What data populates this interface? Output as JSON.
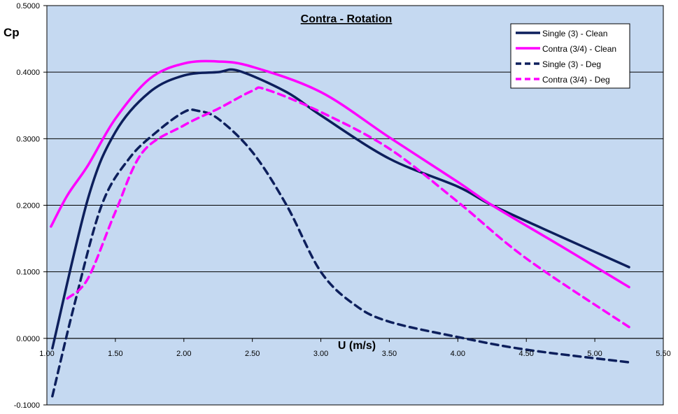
{
  "chart_data": {
    "type": "line",
    "title": "Contra - Rotation",
    "xlabel": "U (m/s)",
    "ylabel": "Cp",
    "xlim": [
      1.0,
      5.5
    ],
    "ylim": [
      -0.1,
      0.5
    ],
    "xticks": [
      "1.00",
      "1.50",
      "2.00",
      "2.50",
      "3.00",
      "3.50",
      "4.00",
      "4.50",
      "5.00",
      "5.50"
    ],
    "yticks": [
      "-0.1000",
      "0.0000",
      "0.1000",
      "0.2000",
      "0.3000",
      "0.4000",
      "0.5000"
    ],
    "grid": "horizontal",
    "legend_position": "top-right",
    "series": [
      {
        "name": "Single (3) - Clean",
        "color": "#0d1f5c",
        "dashed": false,
        "x": [
          1.04,
          1.3,
          1.5,
          1.75,
          2.0,
          2.25,
          2.4,
          2.75,
          3.0,
          3.5,
          4.0,
          4.25,
          4.75,
          5.25
        ],
        "y": [
          -0.015,
          0.21,
          0.31,
          0.37,
          0.395,
          0.4,
          0.402,
          0.37,
          0.335,
          0.27,
          0.228,
          0.2,
          0.153,
          0.107
        ]
      },
      {
        "name": "Contra (3/4) - Clean",
        "color": "#ff00ff",
        "dashed": false,
        "x": [
          1.03,
          1.15,
          1.3,
          1.5,
          1.75,
          2.0,
          2.25,
          2.5,
          3.0,
          3.5,
          4.0,
          4.25,
          4.75,
          5.25
        ],
        "y": [
          0.168,
          0.215,
          0.26,
          0.33,
          0.39,
          0.413,
          0.416,
          0.408,
          0.37,
          0.302,
          0.235,
          0.2,
          0.139,
          0.077
        ]
      },
      {
        "name": "Single (3) - Deg",
        "color": "#0d1f5c",
        "dashed": true,
        "x": [
          1.04,
          1.2,
          1.4,
          1.6,
          1.8,
          2.0,
          2.1,
          2.25,
          2.5,
          2.75,
          3.0,
          3.25,
          3.5,
          4.0,
          4.5,
          5.25
        ],
        "y": [
          -0.087,
          0.05,
          0.2,
          0.27,
          0.31,
          0.34,
          0.342,
          0.33,
          0.28,
          0.2,
          0.1,
          0.05,
          0.025,
          0.002,
          -0.017,
          -0.036
        ]
      },
      {
        "name": "Contra (3/4) - Deg",
        "color": "#ff00ff",
        "dashed": true,
        "x": [
          1.15,
          1.3,
          1.5,
          1.7,
          2.0,
          2.25,
          2.5,
          2.6,
          3.0,
          3.5,
          4.0,
          4.5,
          5.25
        ],
        "y": [
          0.06,
          0.09,
          0.19,
          0.28,
          0.32,
          0.345,
          0.372,
          0.374,
          0.34,
          0.285,
          0.205,
          0.12,
          0.017
        ]
      }
    ]
  }
}
